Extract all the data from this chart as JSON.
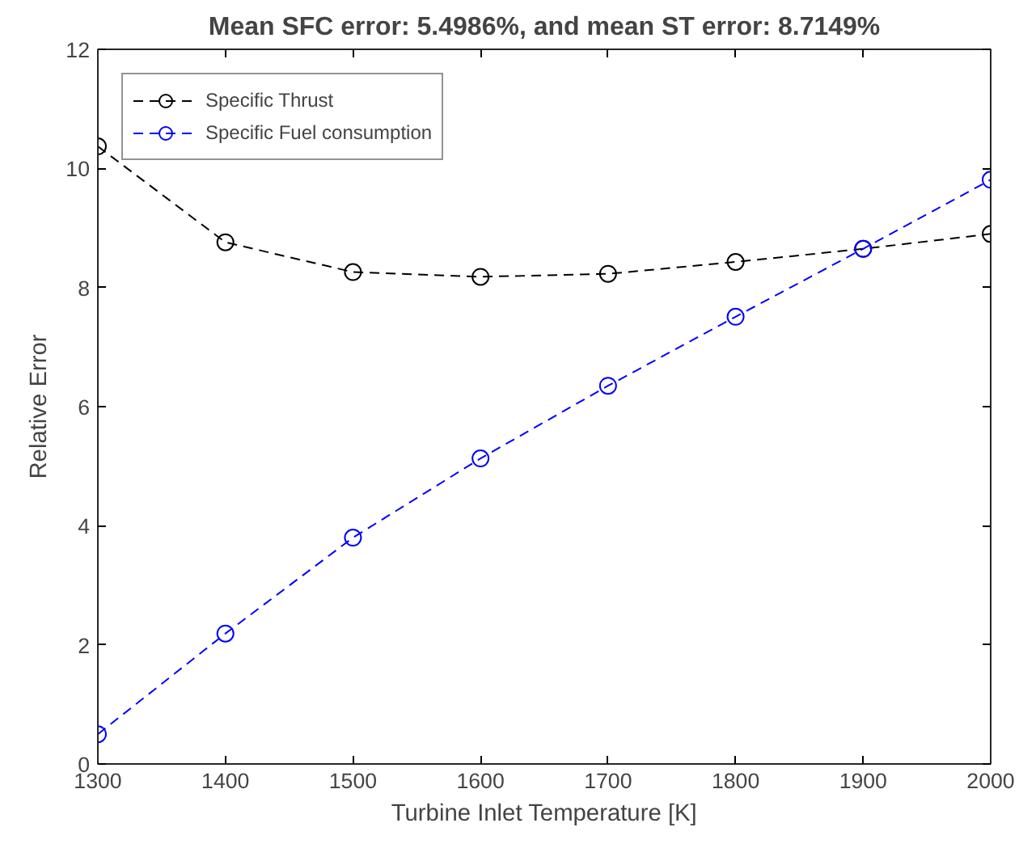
{
  "chart_data": {
    "type": "line",
    "title": "Mean SFC error: 5.4986%, and mean ST error: 8.7149%",
    "xlabel": "Turbine Inlet Temperature [K]",
    "ylabel": "Relative Error",
    "x": [
      1300,
      1400,
      1500,
      1600,
      1700,
      1800,
      1900,
      2000
    ],
    "series": [
      {
        "name": "Specific Thrust",
        "color": "#000000",
        "values": [
          10.37,
          8.76,
          8.26,
          8.18,
          8.23,
          8.43,
          8.65,
          8.9
        ]
      },
      {
        "name": "Specific Fuel consumption",
        "color": "#0000ff",
        "values": [
          0.5,
          2.19,
          3.8,
          5.13,
          6.35,
          7.51,
          8.65,
          9.81
        ]
      }
    ],
    "xlim": [
      1300,
      2000
    ],
    "xticks": [
      1300,
      1400,
      1500,
      1600,
      1700,
      1800,
      1900,
      2000
    ],
    "ylim": [
      0,
      12
    ],
    "yticks": [
      0,
      2,
      4,
      6,
      8,
      10,
      12
    ],
    "grid": false,
    "legend": "top left",
    "marker": "circle",
    "line_style": "dashed"
  }
}
